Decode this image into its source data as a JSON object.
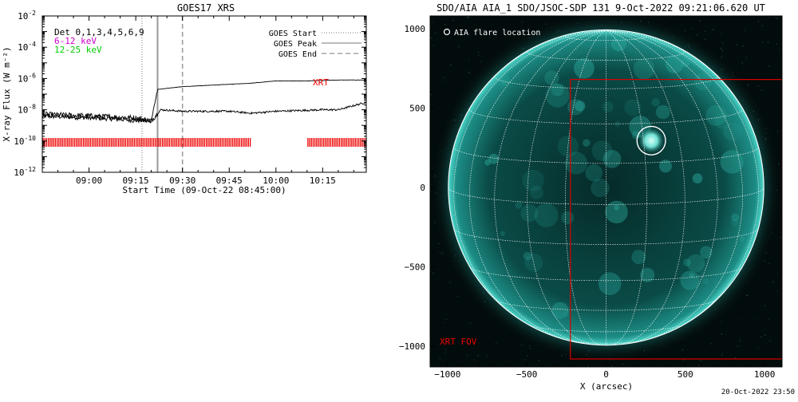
{
  "footer": {
    "timestamp": "20-Oct-2022 23:50"
  },
  "chart_data": [
    {
      "type": "line",
      "title": "GOES17 XRS",
      "xlabel": "Start Time (09-Oct-22 08:45:00)",
      "ylabel": "X-ray Flux (W m⁻²)",
      "x_range": [
        "08:45",
        "10:29"
      ],
      "x_ticks": [
        "09:00",
        "09:15",
        "09:30",
        "09:45",
        "10:00",
        "10:15"
      ],
      "y_scale": "log",
      "ylim": [
        1e-12,
        0.01
      ],
      "y_ticks": [
        {
          "exp": "-2",
          "value": 0.01
        },
        {
          "exp": "-4",
          "value": 0.0001
        },
        {
          "exp": "-6",
          "value": 1e-06
        },
        {
          "exp": "-8",
          "value": 1e-08
        },
        {
          "exp": "-10",
          "value": 1e-10
        },
        {
          "exp": "-12",
          "value": 1e-12
        }
      ],
      "legend_left": [
        {
          "text": "Det 0,1,3,4,5,6,9",
          "color": "#000000"
        },
        {
          "text": "6-12 keV",
          "color": "#cc00cc"
        },
        {
          "text": "12-25 keV",
          "color": "#00cc00"
        }
      ],
      "legend_right": [
        {
          "text": "GOES Start",
          "style": "dotted"
        },
        {
          "text": "GOES Peak",
          "style": "solid"
        },
        {
          "text": "GOES End",
          "style": "dashed"
        }
      ],
      "goes_events": {
        "start": "09:17",
        "peak": "09:22",
        "end": "09:30"
      },
      "xrt_label": "XRT",
      "xrt_coverage": [
        [
          "08:45",
          "09:52"
        ],
        [
          "10:10",
          "10:29"
        ]
      ],
      "series": [
        {
          "name": "",
          "color": "#000000",
          "points": [
            [
              "08:45",
              4e-09
            ],
            [
              "09:00",
              3e-09
            ],
            [
              "09:10",
              2.5e-09
            ],
            [
              "09:15",
              2e-09
            ],
            [
              "09:20",
              2e-09
            ],
            [
              "09:22",
              2e-07
            ],
            [
              "09:30",
              3e-07
            ],
            [
              "09:52",
              5e-07
            ],
            [
              "10:00",
              7e-07
            ],
            [
              "10:10",
              7e-07
            ],
            [
              "10:20",
              8e-07
            ],
            [
              "10:29",
              8e-07
            ]
          ]
        },
        {
          "name": "",
          "color": "#000000",
          "points": [
            [
              "08:45",
              5e-09
            ],
            [
              "09:00",
              4e-09
            ],
            [
              "09:15",
              3e-09
            ],
            [
              "09:20",
              2e-09
            ],
            [
              "09:23",
              1e-08
            ],
            [
              "09:30",
              8e-09
            ],
            [
              "09:45",
              8e-09
            ],
            [
              "09:52",
              6e-09
            ],
            [
              "10:00",
              8e-09
            ],
            [
              "10:15",
              1e-08
            ],
            [
              "10:20",
              1e-08
            ],
            [
              "10:29",
              3e-08
            ]
          ]
        }
      ]
    },
    {
      "type": "scatter",
      "title": "SDO/AIA AIA_1 SDO/JSOC-SDP 131  9-Oct-2022 09:21:06.620 UT",
      "xlabel": "X (arcsec)",
      "ylabel": "",
      "xlim": [
        -1110,
        1110
      ],
      "ylim": [
        -1130,
        1080
      ],
      "x_ticks": [
        -1000,
        -500,
        0,
        500,
        1000
      ],
      "y_ticks": [
        -1000,
        -500,
        0,
        500,
        1000
      ],
      "solar_radius_arcsec": 995,
      "legend": "AIA flare location",
      "flare_location": {
        "x": 285,
        "y": 295,
        "r": 90
      },
      "xrt_fov": {
        "label": "XRT FOV",
        "x": [
          -225,
          1110
        ],
        "y": [
          -1080,
          680
        ]
      },
      "grid": true
    }
  ]
}
